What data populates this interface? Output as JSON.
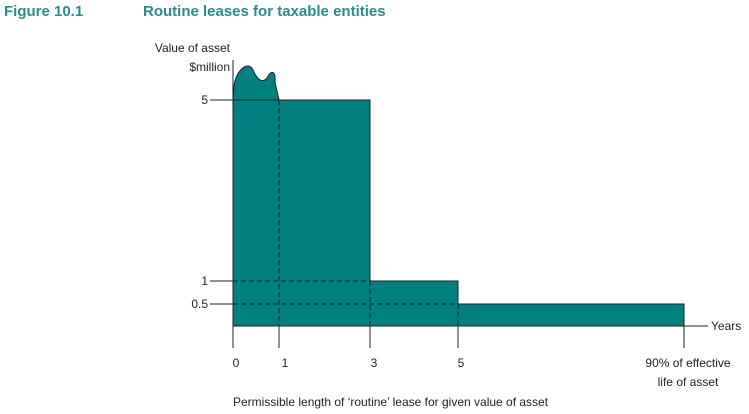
{
  "figure": {
    "number": "Figure 10.1",
    "title": "Routine leases for taxable entities"
  },
  "y_axis": {
    "label_line1": "Value of asset",
    "label_line2": "$million",
    "ticks": [
      "5",
      "1",
      "0.5"
    ]
  },
  "x_axis": {
    "label": "Years",
    "ticks": [
      "0",
      "1",
      "3",
      "5"
    ],
    "end_label_line1": "90% of effective",
    "end_label_line2": "life of asset"
  },
  "caption": "Permissible length of ‘routine’ lease for given value of asset",
  "colors": {
    "fill": "#008080",
    "title": "#2e8b8b"
  }
}
